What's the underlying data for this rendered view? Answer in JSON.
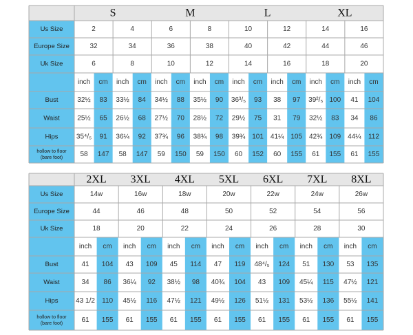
{
  "tables": [
    {
      "sizes": [
        "S",
        "M",
        "L",
        "XL"
      ],
      "basic_rows": [
        {
          "label": "Us Size",
          "values": [
            "2",
            "4",
            "6",
            "8",
            "10",
            "12",
            "14",
            "16"
          ]
        },
        {
          "label": "Europe Size",
          "values": [
            "32",
            "34",
            "36",
            "38",
            "40",
            "42",
            "44",
            "46"
          ]
        },
        {
          "label": "Uk Size",
          "values": [
            "6",
            "8",
            "10",
            "12",
            "14",
            "16",
            "18",
            "20"
          ]
        }
      ],
      "units": [
        "inch",
        "cm"
      ],
      "measure_rows": [
        {
          "label": [
            "Bust"
          ],
          "values": [
            "32½",
            "83",
            "33½",
            "84",
            "34½",
            "88",
            "35½",
            "90",
            "36³/₅",
            "93",
            "38",
            "97",
            "39²/₅",
            "100",
            "41",
            "104"
          ]
        },
        {
          "label": [
            "Waist"
          ],
          "values": [
            "25½",
            "65",
            "26½",
            "68",
            "27½",
            "70",
            "28½",
            "72",
            "29½",
            "75",
            "31",
            "79",
            "32½",
            "83",
            "34",
            "86"
          ]
        },
        {
          "label": [
            "Hips"
          ],
          "values": [
            "35⁴/₅",
            "91",
            "36¼",
            "92",
            "37¾",
            "96",
            "38¾",
            "98",
            "39¾",
            "101",
            "41¼",
            "105",
            "42¾",
            "109",
            "44¼",
            "112"
          ]
        },
        {
          "label": [
            "hollow to floor",
            "(bare foot)"
          ],
          "values": [
            "58",
            "147",
            "58",
            "147",
            "59",
            "150",
            "59",
            "150",
            "60",
            "152",
            "60",
            "155",
            "61",
            "155",
            "61",
            "155"
          ]
        }
      ]
    },
    {
      "sizes": [
        "2XL",
        "3XL",
        "4XL",
        "5XL",
        "6XL",
        "7XL",
        "8XL"
      ],
      "basic_rows": [
        {
          "label": "Us Size",
          "values": [
            "14w",
            "16w",
            "18w",
            "20w",
            "22w",
            "24w",
            "26w"
          ]
        },
        {
          "label": "Europe Size",
          "values": [
            "44",
            "46",
            "48",
            "50",
            "52",
            "54",
            "56"
          ]
        },
        {
          "label": "Uk Size",
          "values": [
            "18",
            "20",
            "22",
            "24",
            "26",
            "28",
            "30"
          ]
        }
      ],
      "units": [
        "inch",
        "cm"
      ],
      "measure_rows": [
        {
          "label": [
            "Bust"
          ],
          "values": [
            "41",
            "104",
            "43",
            "109",
            "45",
            "114",
            "47",
            "119",
            "48⁴/₅",
            "124",
            "51",
            "130",
            "53",
            "135"
          ]
        },
        {
          "label": [
            "Waist"
          ],
          "values": [
            "34",
            "86",
            "36¼",
            "92",
            "38½",
            "98",
            "40¾",
            "104",
            "43",
            "109",
            "45¼",
            "115",
            "47½",
            "121"
          ]
        },
        {
          "label": [
            "Hips"
          ],
          "values": [
            "43 1/2",
            "110",
            "45½",
            "116",
            "47½",
            "121",
            "49½",
            "126",
            "51½",
            "131",
            "53½",
            "136",
            "55½",
            "141"
          ]
        },
        {
          "label": [
            "hollow to floor",
            "(bare foot)"
          ],
          "values": [
            "61",
            "155",
            "61",
            "155",
            "61",
            "155",
            "61",
            "155",
            "61",
            "155",
            "61",
            "155",
            "61",
            "155"
          ]
        }
      ]
    }
  ]
}
